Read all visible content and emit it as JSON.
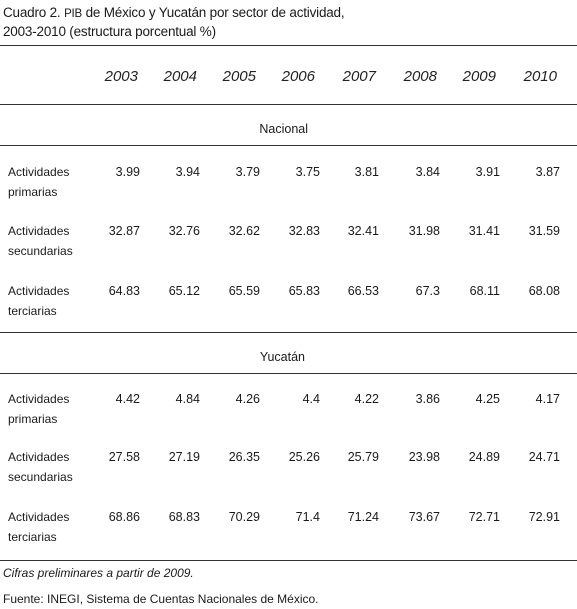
{
  "title": {
    "prefix": "Cuadro 2.",
    "abbr": "PIB",
    "rest": "de México y Yucatán por sector de actividad,",
    "line2": "2003-2010 (estructura porcentual %)"
  },
  "years": [
    "2003",
    "2004",
    "2005",
    "2006",
    "2007",
    "2008",
    "2009",
    "2010"
  ],
  "sections": [
    {
      "label": "Nacional",
      "rows": [
        {
          "label_1": "Actividades",
          "label_2": "primarias",
          "values": [
            "3.99",
            "3.94",
            "3.79",
            "3.75",
            "3.81",
            "3.84",
            "3.91",
            "3.87"
          ]
        },
        {
          "label_1": "Actividades",
          "label_2": "secundarias",
          "values": [
            "32.87",
            "32.76",
            "32.62",
            "32.83",
            "32.41",
            "31.98",
            "31.41",
            "31.59"
          ]
        },
        {
          "label_1": "Actividades",
          "label_2": "terciarias",
          "values": [
            "64.83",
            "65.12",
            "65.59",
            "65.83",
            "66.53",
            "67.3",
            "68.11",
            "68.08"
          ]
        }
      ]
    },
    {
      "label": "Yucatán",
      "rows": [
        {
          "label_1": "Actividades",
          "label_2": "primarias",
          "values": [
            "4.42",
            "4.84",
            "4.26",
            "4.4",
            "4.22",
            "3.86",
            "4.25",
            "4.17"
          ]
        },
        {
          "label_1": "Actividades",
          "label_2": "secundarias",
          "values": [
            "27.58",
            "27.19",
            "26.35",
            "25.26",
            "25.79",
            "23.98",
            "24.89",
            "24.71"
          ]
        },
        {
          "label_1": "Actividades",
          "label_2": "terciarias",
          "values": [
            "68.86",
            "68.83",
            "70.29",
            "71.4",
            "71.24",
            "73.67",
            "72.71",
            "72.91"
          ]
        }
      ]
    }
  ],
  "notes": {
    "preliminary": "Cifras preliminares a partir de 2009.",
    "source_prefix": "Fuente:",
    "source_abbr": "INEGI",
    "source_rest": ", Sistema de Cuentas Nacionales de México."
  }
}
